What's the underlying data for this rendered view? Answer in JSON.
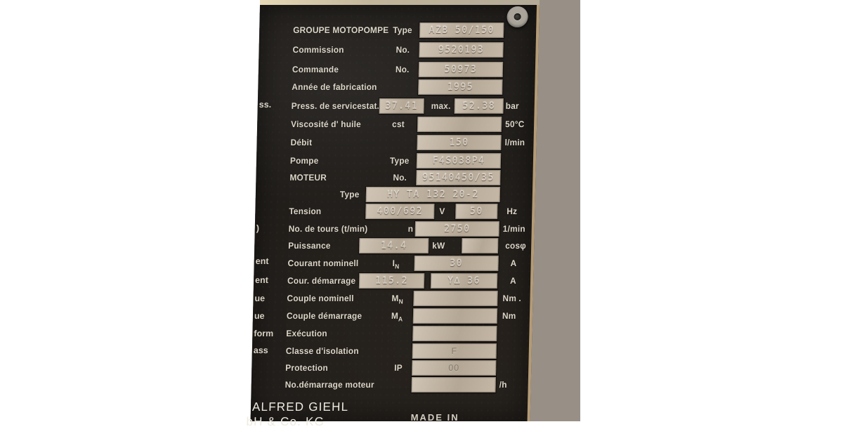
{
  "photo": {
    "plate": {
      "rows": [
        {
          "label": "GROUPE MOTOPOMPE",
          "mids": [
            "Type"
          ],
          "values": [
            "AZB 50/150"
          ],
          "unit": ""
        },
        {
          "label": "Commission",
          "mids": [
            "No."
          ],
          "values": [
            "9520193"
          ],
          "unit": ""
        },
        {
          "label": "Commande",
          "mids": [
            "No."
          ],
          "values": [
            "50973"
          ],
          "unit": ""
        },
        {
          "label": "Année de  fabrication",
          "mids": [],
          "values": [
            "1995"
          ],
          "unit": ""
        },
        {
          "label": "Press. de service",
          "mids": [
            "stat.",
            "max."
          ],
          "values": [
            "37.41",
            "52.38"
          ],
          "unit": "bar"
        },
        {
          "label": "Viscosité d' huile",
          "mids": [
            "cst"
          ],
          "values": [
            ""
          ],
          "unit": "50°C"
        },
        {
          "label": "Débit",
          "mids": [],
          "values": [
            "150"
          ],
          "unit": "l/min"
        },
        {
          "label": "Pompe",
          "mids": [
            "Type"
          ],
          "values": [
            "F4S038P4"
          ],
          "unit": ""
        },
        {
          "label": "MOTEUR",
          "mids": [
            "No."
          ],
          "values": [
            "95140450/35"
          ],
          "unit": ""
        },
        {
          "label": "Type",
          "mids": [],
          "values": [
            "HY TA 132 20-2"
          ],
          "unit": ""
        },
        {
          "label": "Tension",
          "mids": [
            "V"
          ],
          "values": [
            "400/692",
            "50"
          ],
          "unit": "Hz"
        },
        {
          "label": "No. de tours (t/min)",
          "mids": [
            "n"
          ],
          "values": [
            "2750"
          ],
          "unit": "1/min"
        },
        {
          "label": "Puissance",
          "mids": [
            "kW"
          ],
          "values": [
            "14.4",
            ""
          ],
          "unit": "cosφ"
        },
        {
          "label": "Courant nominell",
          "mids": [
            "I_N"
          ],
          "values": [
            "30"
          ],
          "unit": "A"
        },
        {
          "label": "Cour. démarrage",
          "mids": [],
          "values": [
            "115.2",
            "Y∆ 36"
          ],
          "unit": "A"
        },
        {
          "label": "Couple nominell",
          "mids": [
            "M_N"
          ],
          "values": [
            ""
          ],
          "unit": "Nm ."
        },
        {
          "label": "Couple démarrage",
          "mids": [
            "M_A"
          ],
          "values": [
            ""
          ],
          "unit": "Nm"
        },
        {
          "label": "Exécution",
          "mids": [],
          "values": [
            ""
          ],
          "unit": ""
        },
        {
          "label": "Classe d'isolation",
          "mids": [],
          "values": [
            "F"
          ],
          "unit": ""
        },
        {
          "label": "Protection",
          "mids": [
            "IP"
          ],
          "values": [
            "00"
          ],
          "unit": ""
        },
        {
          "label": "No.démarrage moteur",
          "mids": [],
          "values": [
            ""
          ],
          "unit": "/h"
        }
      ],
      "left_edge_fragments": [
        "ss.",
        ")",
        "ent",
        "ent",
        "ue",
        "ue",
        "form",
        "ass"
      ],
      "brand_line1": "ALFRED GIEHL",
      "brand_line2": "bH & Co. KG",
      "made_in": "MADE IN"
    },
    "colors": {
      "plate_background": "#211e1b",
      "value_box": "#c3b6a6",
      "label_text": "#dcd5c7",
      "wall": "#989087",
      "plate_edge": "#b49b76",
      "page_background": "#ffffff"
    }
  }
}
